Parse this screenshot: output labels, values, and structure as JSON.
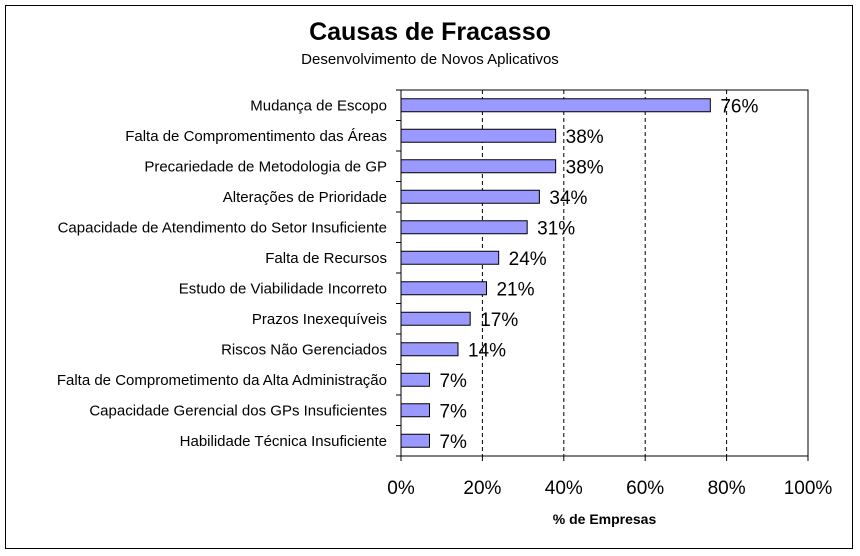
{
  "chart_data": {
    "type": "bar",
    "orientation": "horizontal",
    "title": "Causas de Fracasso",
    "subtitle": "Desenvolvimento de Novos Aplicativos",
    "xlabel": "% de Empresas",
    "ylabel": "",
    "xlim": [
      0,
      100
    ],
    "x_ticks": [
      "0%",
      "20%",
      "40%",
      "60%",
      "80%",
      "100%"
    ],
    "x_tick_values": [
      0,
      20,
      40,
      60,
      80,
      100
    ],
    "grid": "vertical dashed",
    "bar_color": "#9999ff",
    "categories": [
      "Mudança de Escopo",
      "Falta de Compromentimento das Áreas",
      "Precariedade de Metodologia de GP",
      "Alterações de Prioridade",
      "Capacidade de Atendimento do Setor Insuficiente",
      "Falta de Recursos",
      "Estudo de Viabilidade Incorreto",
      "Prazos Inexequíveis",
      "Riscos Não Gerenciados",
      "Falta de Comprometimento da Alta Administração",
      "Capacidade Gerencial dos GPs Insuficientes",
      "Habilidade Técnica Insuficiente"
    ],
    "values": [
      76,
      38,
      38,
      34,
      31,
      24,
      21,
      17,
      14,
      7,
      7,
      7
    ],
    "data_labels": [
      "76%",
      "38%",
      "38%",
      "34%",
      "31%",
      "24%",
      "21%",
      "17%",
      "14%",
      "7%",
      "7%",
      "7%"
    ]
  }
}
